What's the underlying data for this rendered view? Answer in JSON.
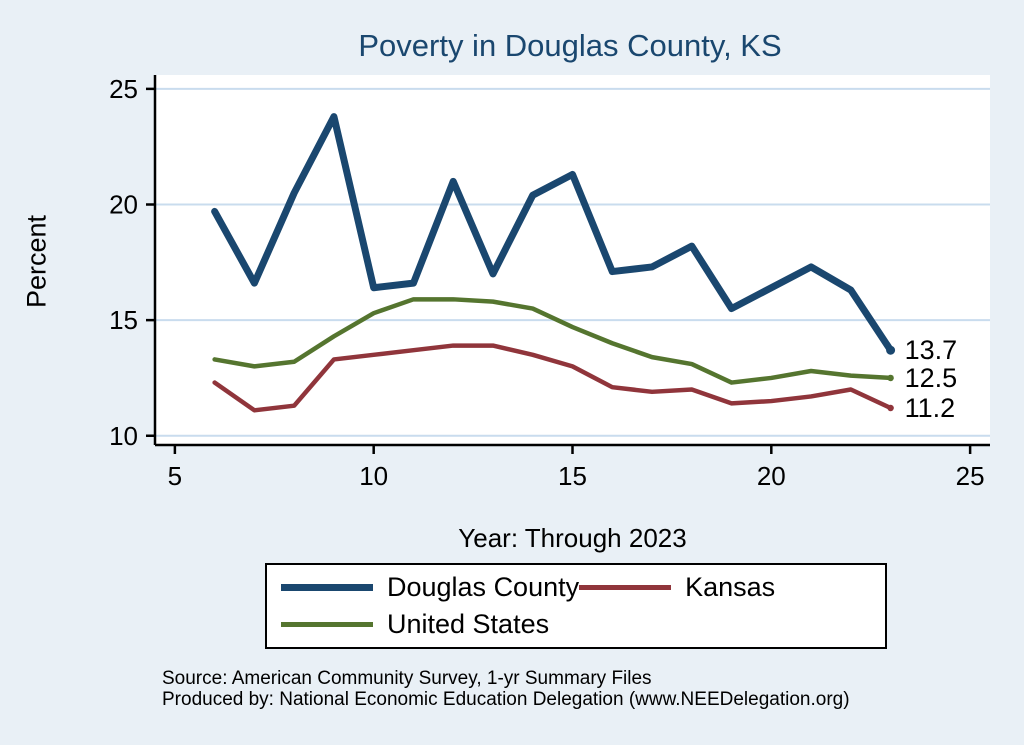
{
  "title": "Poverty in Douglas County, KS",
  "chart_data": {
    "type": "line",
    "title": "Poverty in Douglas County, KS",
    "xlabel": "Year: Through 2023",
    "ylabel": "Percent",
    "xlim": [
      4.5,
      25.5
    ],
    "ylim": [
      9.6,
      25.6
    ],
    "xticks": [
      5,
      10,
      15,
      20,
      25
    ],
    "yticks": [
      10,
      15,
      20,
      25
    ],
    "grid": true,
    "legend_position": "bottom",
    "x": [
      6,
      7,
      8,
      9,
      10,
      11,
      12,
      13,
      14,
      15,
      16,
      17,
      18,
      19,
      20,
      21,
      22,
      23
    ],
    "series": [
      {
        "name": "Douglas County",
        "color": "#1a476f",
        "line_width": 7,
        "end_label": "13.7",
        "values": [
          19.7,
          16.6,
          20.5,
          23.8,
          16.4,
          16.6,
          21.0,
          17.0,
          20.4,
          21.3,
          17.1,
          17.3,
          18.2,
          15.5,
          16.4,
          17.3,
          16.3,
          13.7
        ]
      },
      {
        "name": "Kansas",
        "color": "#90353b",
        "line_width": 4.5,
        "end_label": "11.2",
        "values": [
          12.3,
          11.1,
          11.3,
          13.3,
          13.5,
          13.7,
          13.9,
          13.9,
          13.5,
          13.0,
          12.1,
          11.9,
          12.0,
          11.4,
          11.5,
          11.7,
          12.0,
          11.2
        ]
      },
      {
        "name": "United States",
        "color": "#55752f",
        "line_width": 4.5,
        "end_label": "12.5",
        "values": [
          13.3,
          13.0,
          13.2,
          14.3,
          15.3,
          15.9,
          15.9,
          15.8,
          15.5,
          14.7,
          14.0,
          13.4,
          13.1,
          12.3,
          12.5,
          12.8,
          12.6,
          12.5
        ]
      }
    ]
  },
  "legend": {
    "items": [
      "Douglas County",
      "Kansas",
      "United States"
    ]
  },
  "footer": {
    "source_line": "Source: American Community Survey, 1-yr Summary Files",
    "produced_line": "Produced by: National Economic Education Delegation (www.NEEDelegation.org)"
  },
  "colors": {
    "background": "#e9f0f6",
    "plot_background": "#ffffff",
    "grid": "#c9dcee",
    "axis": "#000000",
    "title": "#1a476f"
  }
}
